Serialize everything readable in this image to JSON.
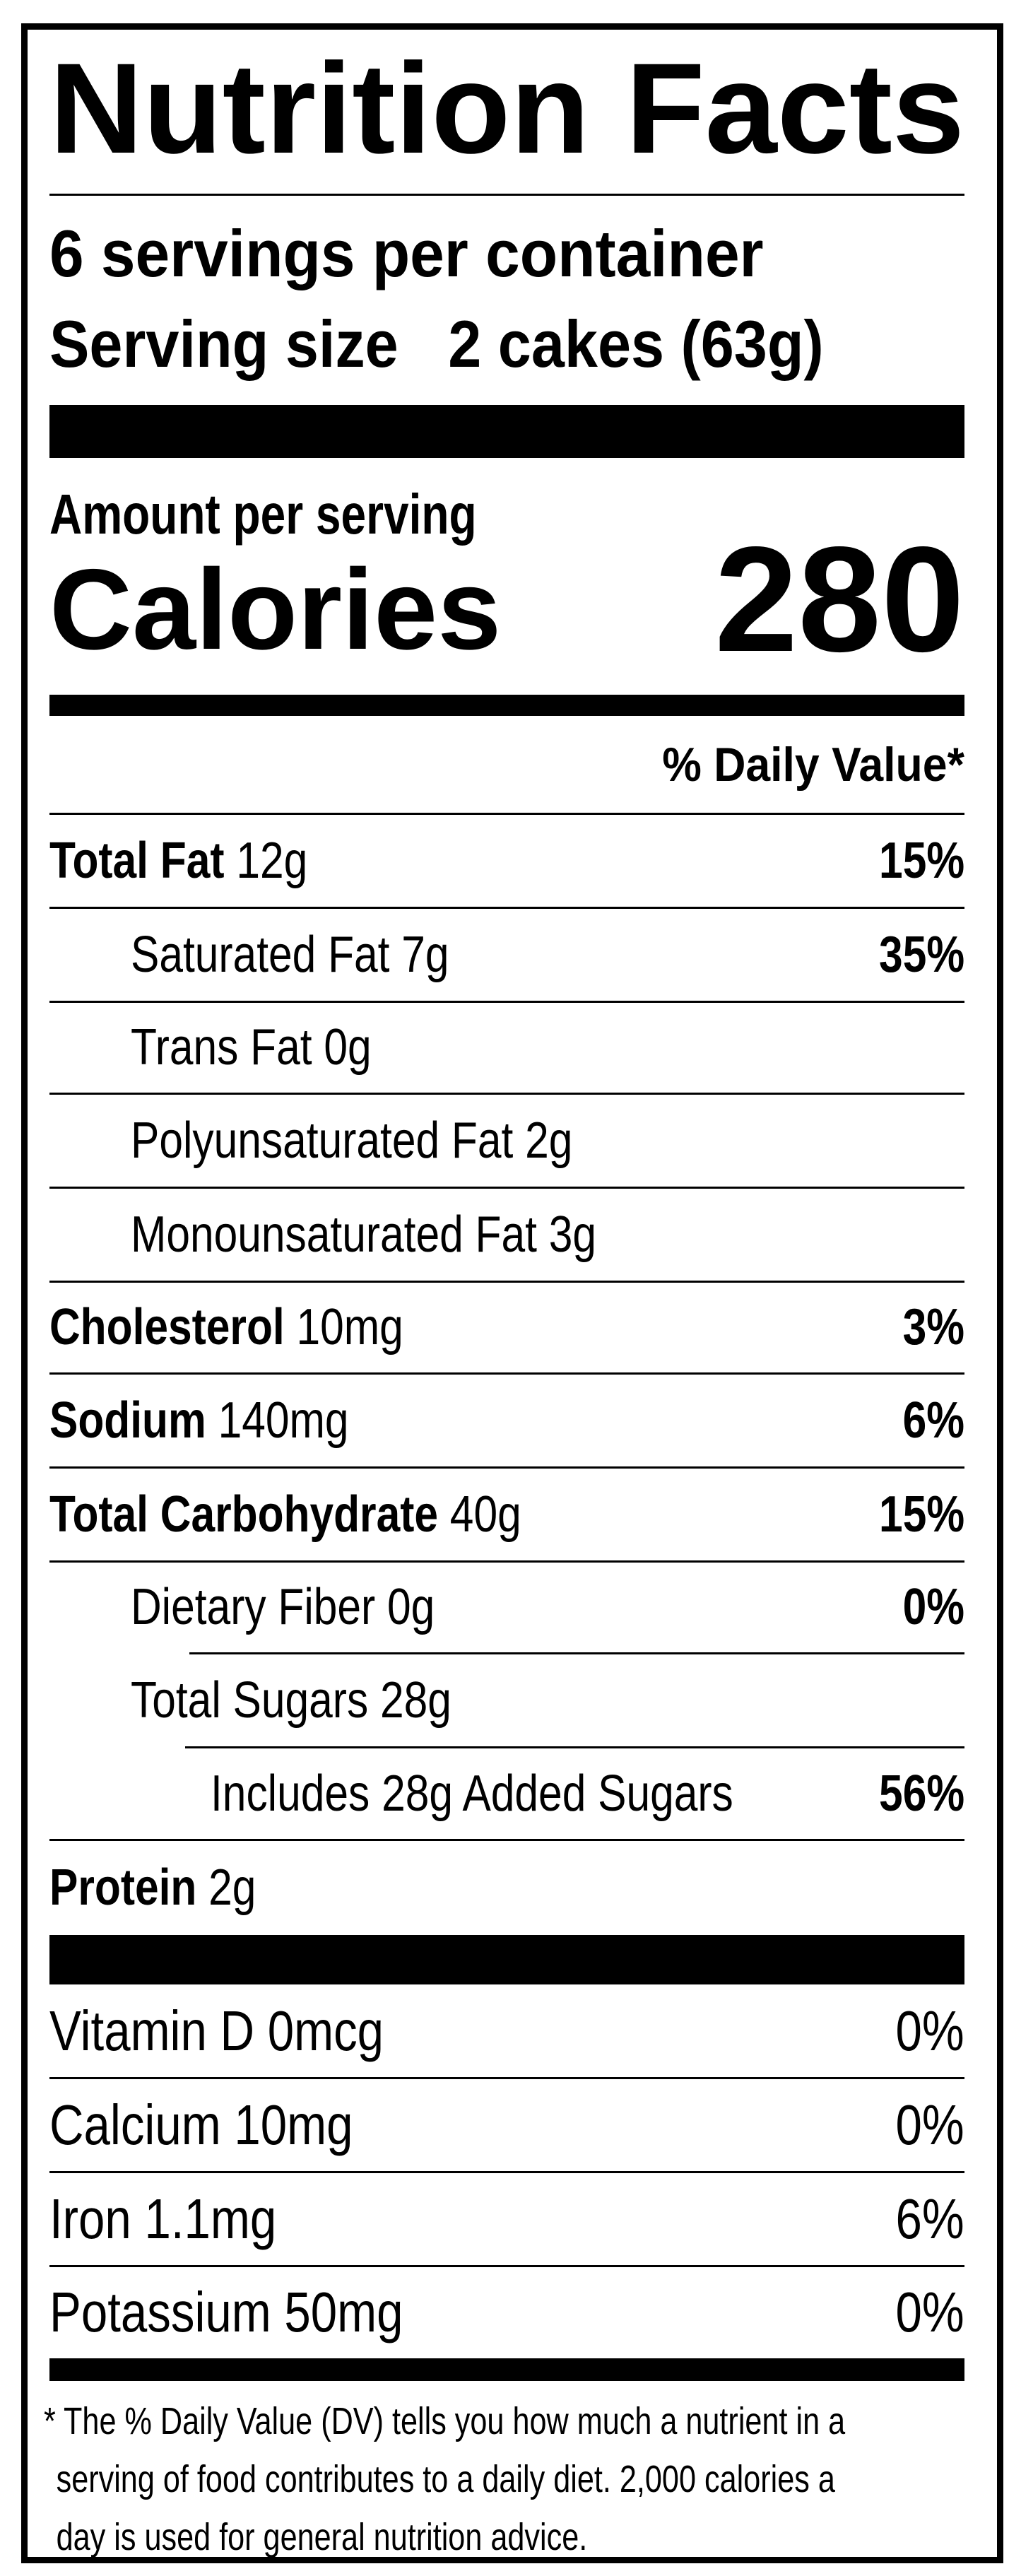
{
  "title": "Nutrition Facts",
  "servings_per_container": "6 servings per container",
  "serving_size_label": "Serving size",
  "serving_size_value": "2 cakes (63g)",
  "amount_per_serving": "Amount per serving",
  "calories_label": "Calories",
  "calories_value": "280",
  "daily_value_header": "% Daily Value*",
  "nutrients": [
    {
      "name": "Total Fat",
      "amount": "12g",
      "dv": "15%"
    },
    {
      "name": "Saturated Fat",
      "amount": "7g",
      "dv": "35%"
    },
    {
      "name": "Trans Fat",
      "amount": "0g",
      "dv": ""
    },
    {
      "name": "Polyunsaturated Fat",
      "amount": "2g",
      "dv": ""
    },
    {
      "name": "Monounsaturated Fat",
      "amount": "3g",
      "dv": ""
    },
    {
      "name": "Cholesterol",
      "amount": "10mg",
      "dv": "3%"
    },
    {
      "name": "Sodium",
      "amount": "140mg",
      "dv": "6%"
    },
    {
      "name": "Total Carbohydrate",
      "amount": "40g",
      "dv": "15%"
    },
    {
      "name": "Dietary Fiber",
      "amount": "0g",
      "dv": "0%"
    },
    {
      "name": "Total Sugars",
      "amount": "28g",
      "dv": ""
    },
    {
      "name": "Includes 28g Added Sugars",
      "amount": "",
      "dv": "56%"
    },
    {
      "name": "Protein",
      "amount": "2g",
      "dv": ""
    }
  ],
  "vitamins": [
    {
      "name": "Vitamin D 0mcg",
      "dv": "0%"
    },
    {
      "name": "Calcium 10mg",
      "dv": "0%"
    },
    {
      "name": "Iron 1.1mg",
      "dv": "6%"
    },
    {
      "name": "Potassium 50mg",
      "dv": "0%"
    }
  ],
  "footnote": {
    "line1": "* The % Daily Value (DV) tells you how much a nutrient in a",
    "line2": "serving of food contributes to a daily diet. 2,000 calories a",
    "line3": "day is used for general nutrition advice."
  }
}
